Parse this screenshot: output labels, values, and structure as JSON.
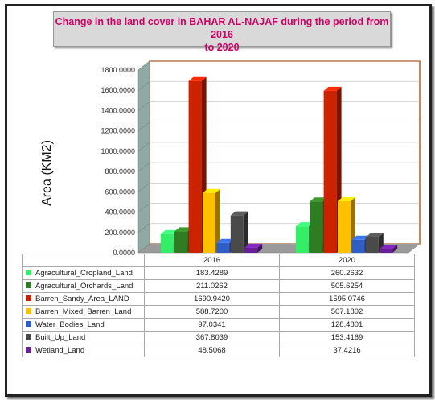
{
  "chart_data": {
    "type": "bar",
    "title": "Change in the land cover in BAHAR AL-NAJAF  during the period from 2016 to 2020",
    "title_line1": "Change in the land cover in BAHAR AL-NAJAF  during the period from 2016",
    "title_line2": "to 2020",
    "ylabel": "Area (KM2)",
    "xlabel": "",
    "categories": [
      "2016",
      "2020"
    ],
    "ylim": [
      0,
      1800
    ],
    "yticks": [
      "0.0000",
      "200.0000",
      "400.0000",
      "600.0000",
      "800.0000",
      "1000.0000",
      "1200.0000",
      "1400.0000",
      "1600.0000",
      "1800.0000"
    ],
    "ytick_values": [
      0,
      200,
      400,
      600,
      800,
      1000,
      1200,
      1400,
      1600,
      1800
    ],
    "series": [
      {
        "name": "Agracultural_Cropland_Land",
        "values": [
          183.4289,
          260.2632
        ],
        "labels": [
          "183.4289",
          "260.2632"
        ],
        "color": "#33ee66"
      },
      {
        "name": "Agracultural_Orchards_Land",
        "values": [
          211.0262,
          505.6254
        ],
        "labels": [
          "211.0262",
          "505.6254"
        ],
        "color": "#2e7d22"
      },
      {
        "name": "Barren_Sandy_Area_LAND",
        "values": [
          1690.942,
          1595.0746
        ],
        "labels": [
          "1690.9420",
          "1595.0746"
        ],
        "color": "#cc2200"
      },
      {
        "name": "Barren_Mixed_Barren_Land",
        "values": [
          588.72,
          507.1802
        ],
        "labels": [
          "588.7200",
          "507.1802"
        ],
        "color": "#ffc000"
      },
      {
        "name": "Water_Bodies_Land",
        "values": [
          97.0341,
          128.4801
        ],
        "labels": [
          "97.0341",
          "128.4801"
        ],
        "color": "#2f5fc4"
      },
      {
        "name": "Built_Up_Land",
        "values": [
          367.8039,
          153.4169
        ],
        "labels": [
          "367.8039",
          "153.4169"
        ],
        "color": "#4a4a4a"
      },
      {
        "name": "Wetland_Land",
        "values": [
          48.5068,
          37.4216
        ],
        "labels": [
          "48.5068",
          "37.4216"
        ],
        "color": "#6a1f9a"
      }
    ],
    "grid": true,
    "legend_placement": "table-below"
  }
}
